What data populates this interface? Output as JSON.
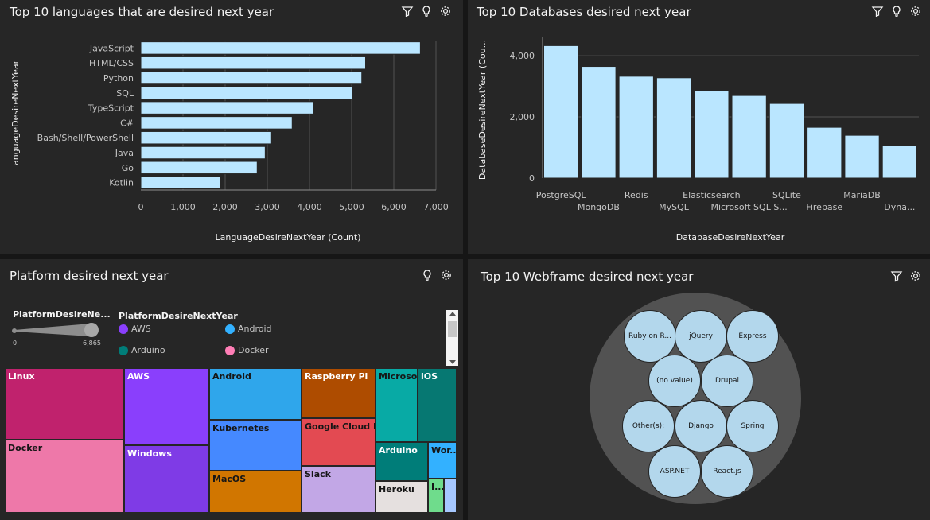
{
  "panels": {
    "languages": {
      "title": "Top 10 languages that are desired next year"
    },
    "databases": {
      "title": "Top 10 Databases desired next year"
    },
    "platform": {
      "title": "Platform desired next year"
    },
    "webframe": {
      "title": "Top 10 Webframe desired next year"
    }
  },
  "icons": {
    "filter": "filter-icon",
    "insight": "lightbulb-icon",
    "settings": "gear-icon"
  },
  "colors": {
    "bar": "#bae6ff",
    "bubble": "#b3d7ec",
    "panel": "#262626"
  },
  "chart_data": [
    {
      "type": "bar",
      "orientation": "horizontal",
      "categories": [
        "JavaScript",
        "HTML/CSS",
        "Python",
        "SQL",
        "TypeScript",
        "C#",
        "Bash/Shell/PowerShell",
        "Java",
        "Go",
        "Kotlin"
      ],
      "values": [
        6630,
        5330,
        5240,
        5020,
        4090,
        3590,
        3100,
        2950,
        2760,
        1880
      ],
      "xlabel": "LanguageDesireNextYear (Count)",
      "ylabel": "LanguageDesireNextYear",
      "xlim": [
        0,
        7000
      ],
      "xticks": [
        "0",
        "1,000",
        "2,000",
        "3,000",
        "4,000",
        "5,000",
        "6,000",
        "7,000"
      ]
    },
    {
      "type": "bar",
      "categories": [
        "PostgreSQL",
        "MongoDB",
        "Redis",
        "MySQL",
        "Elasticsearch",
        "Microsoft SQL S...",
        "SQLite",
        "Firebase",
        "MariaDB",
        "Dyna..."
      ],
      "values": [
        4330,
        3650,
        3330,
        3280,
        2860,
        2700,
        2440,
        1660,
        1400,
        1060
      ],
      "xlabel": "DatabaseDesireNextYear",
      "ylabel": "DatabaseDesireNextYear (Cou...",
      "ylim": [
        0,
        4600
      ],
      "yticks": [
        "0",
        "2,000",
        "4,000"
      ]
    },
    {
      "type": "treemap",
      "legend": {
        "size_title": "PlatformDesireNe...",
        "size_min": "0",
        "size_max": "6,865",
        "color_title": "PlatformDesireNextYear",
        "items": [
          {
            "label": "AWS",
            "color": "#8a3ffc"
          },
          {
            "label": "Android",
            "color": "#33b1ff"
          },
          {
            "label": "Arduino",
            "color": "#007d79"
          },
          {
            "label": "Docker",
            "color": "#ff7eb6"
          }
        ]
      },
      "cells": [
        {
          "label": "Linux",
          "color": "#c0226d"
        },
        {
          "label": "Docker",
          "color": "#ee78a9"
        },
        {
          "label": "AWS",
          "color": "#8a3ffc"
        },
        {
          "label": "Windows",
          "color": "#7f3be6"
        },
        {
          "label": "Android",
          "color": "#2fa6eb"
        },
        {
          "label": "Kubernetes",
          "color": "#4589ff"
        },
        {
          "label": "MacOS",
          "color": "#d17600"
        },
        {
          "label": "Raspberry Pi",
          "color": "#ae4c00"
        },
        {
          "label": "Google Cloud Pl...",
          "color": "#e34a52"
        },
        {
          "label": "Slack",
          "color": "#c2a7e6"
        },
        {
          "label": "Microso...",
          "color": "#08aaa5"
        },
        {
          "label": "iOS",
          "color": "#067872"
        },
        {
          "label": "Arduino",
          "color": "#007d79"
        },
        {
          "label": "Wor...",
          "color": "#33b1ff"
        },
        {
          "label": "Heroku",
          "color": "#e5e0df"
        },
        {
          "label": "I...",
          "color": "#6fdc8c"
        },
        {
          "label": "",
          "color": "#a6c8ff"
        }
      ]
    },
    {
      "type": "bubble",
      "bubbles": [
        "Ruby on R...",
        "jQuery",
        "Express",
        "(no value)",
        "Drupal",
        "Other(s):",
        "Django",
        "Spring",
        "ASP.NET",
        "React.js"
      ]
    }
  ]
}
